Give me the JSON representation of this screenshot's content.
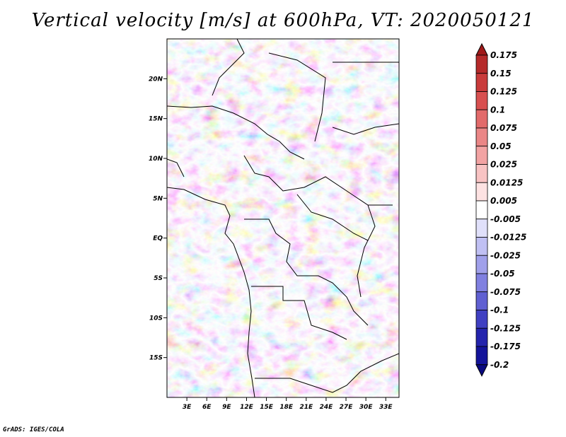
{
  "title": "Vertical velocity [m/s] at 600hPa, VT: 2020050121",
  "credit": "GrADS: IGES/COLA",
  "map": {
    "lat_labels": [
      "20N",
      "15N",
      "10N",
      "5N",
      "EQ",
      "5S",
      "10S",
      "15S"
    ],
    "lat_values": [
      20,
      15,
      10,
      5,
      0,
      -5,
      -10,
      -15
    ],
    "lon_labels": [
      "3E",
      "6E",
      "9E",
      "12E",
      "15E",
      "18E",
      "21E",
      "24E",
      "27E",
      "30E",
      "33E"
    ],
    "lon_values": [
      3,
      6,
      9,
      12,
      15,
      18,
      21,
      24,
      27,
      30,
      33
    ],
    "lon_range": [
      0,
      35
    ],
    "lat_range": [
      -20,
      25
    ]
  },
  "colorbar": {
    "labels": [
      "0.175",
      "0.15",
      "0.125",
      "0.1",
      "0.075",
      "0.05",
      "0.025",
      "0.0125",
      "0.005",
      "-0.005",
      "-0.0125",
      "-0.025",
      "-0.05",
      "-0.075",
      "-0.1",
      "-0.125",
      "-0.175",
      "-0.2"
    ],
    "colors": [
      "#a01a1a",
      "#b52a2a",
      "#c93b3b",
      "#d85050",
      "#e26a6a",
      "#ea8686",
      "#f2a3a3",
      "#f8c3c3",
      "#fde2e2",
      "#ffffff",
      "#e0e0fa",
      "#c0c0f3",
      "#a0a0ea",
      "#8080e0",
      "#6060d2",
      "#4040c2",
      "#2424ad",
      "#14149a",
      "#0a0a80"
    ]
  }
}
